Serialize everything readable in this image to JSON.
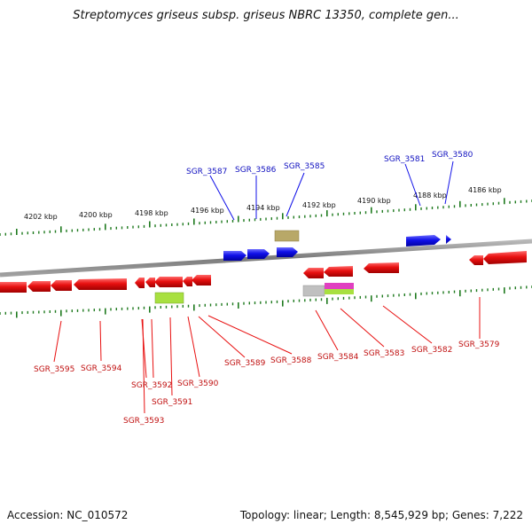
{
  "title": "Streptomyces griseus subsp. griseus NBRC 13350, complete gen...",
  "footer": {
    "accession": "Accession: NC_010572",
    "summary": "Topology: linear; Length: 8,545,929 bp; Genes: 7,222"
  },
  "colors": {
    "forward_gene": "#1010e8",
    "reverse_gene": "#e81010",
    "tick": "#1f7a1f",
    "backbone": "#8a8a8a",
    "rna_olive": "#b8a868",
    "rna_lime": "#a8e040",
    "rna_grey": "#c0c0c0",
    "rna_magenta": "#e040c0",
    "forward_label": "#1010c0",
    "reverse_label": "#c01010"
  },
  "scale_labels": [
    "4202 kbp",
    "4200 kbp",
    "4198 kbp",
    "4196 kbp",
    "4194 kbp",
    "4192 kbp",
    "4190 kbp",
    "4188 kbp",
    "4186 kbp"
  ],
  "forward_labels": [
    "SGR_3587",
    "SGR_3586",
    "SGR_3585",
    "SGR_3581",
    "SGR_3580"
  ],
  "reverse_labels": [
    "SGR_3595",
    "SGR_3594",
    "SGR_3592",
    "SGR_3593",
    "SGR_3591",
    "SGR_3590",
    "SGR_3589",
    "SGR_3588",
    "SGR_3584",
    "SGR_3583",
    "SGR_3582",
    "SGR_3579"
  ]
}
